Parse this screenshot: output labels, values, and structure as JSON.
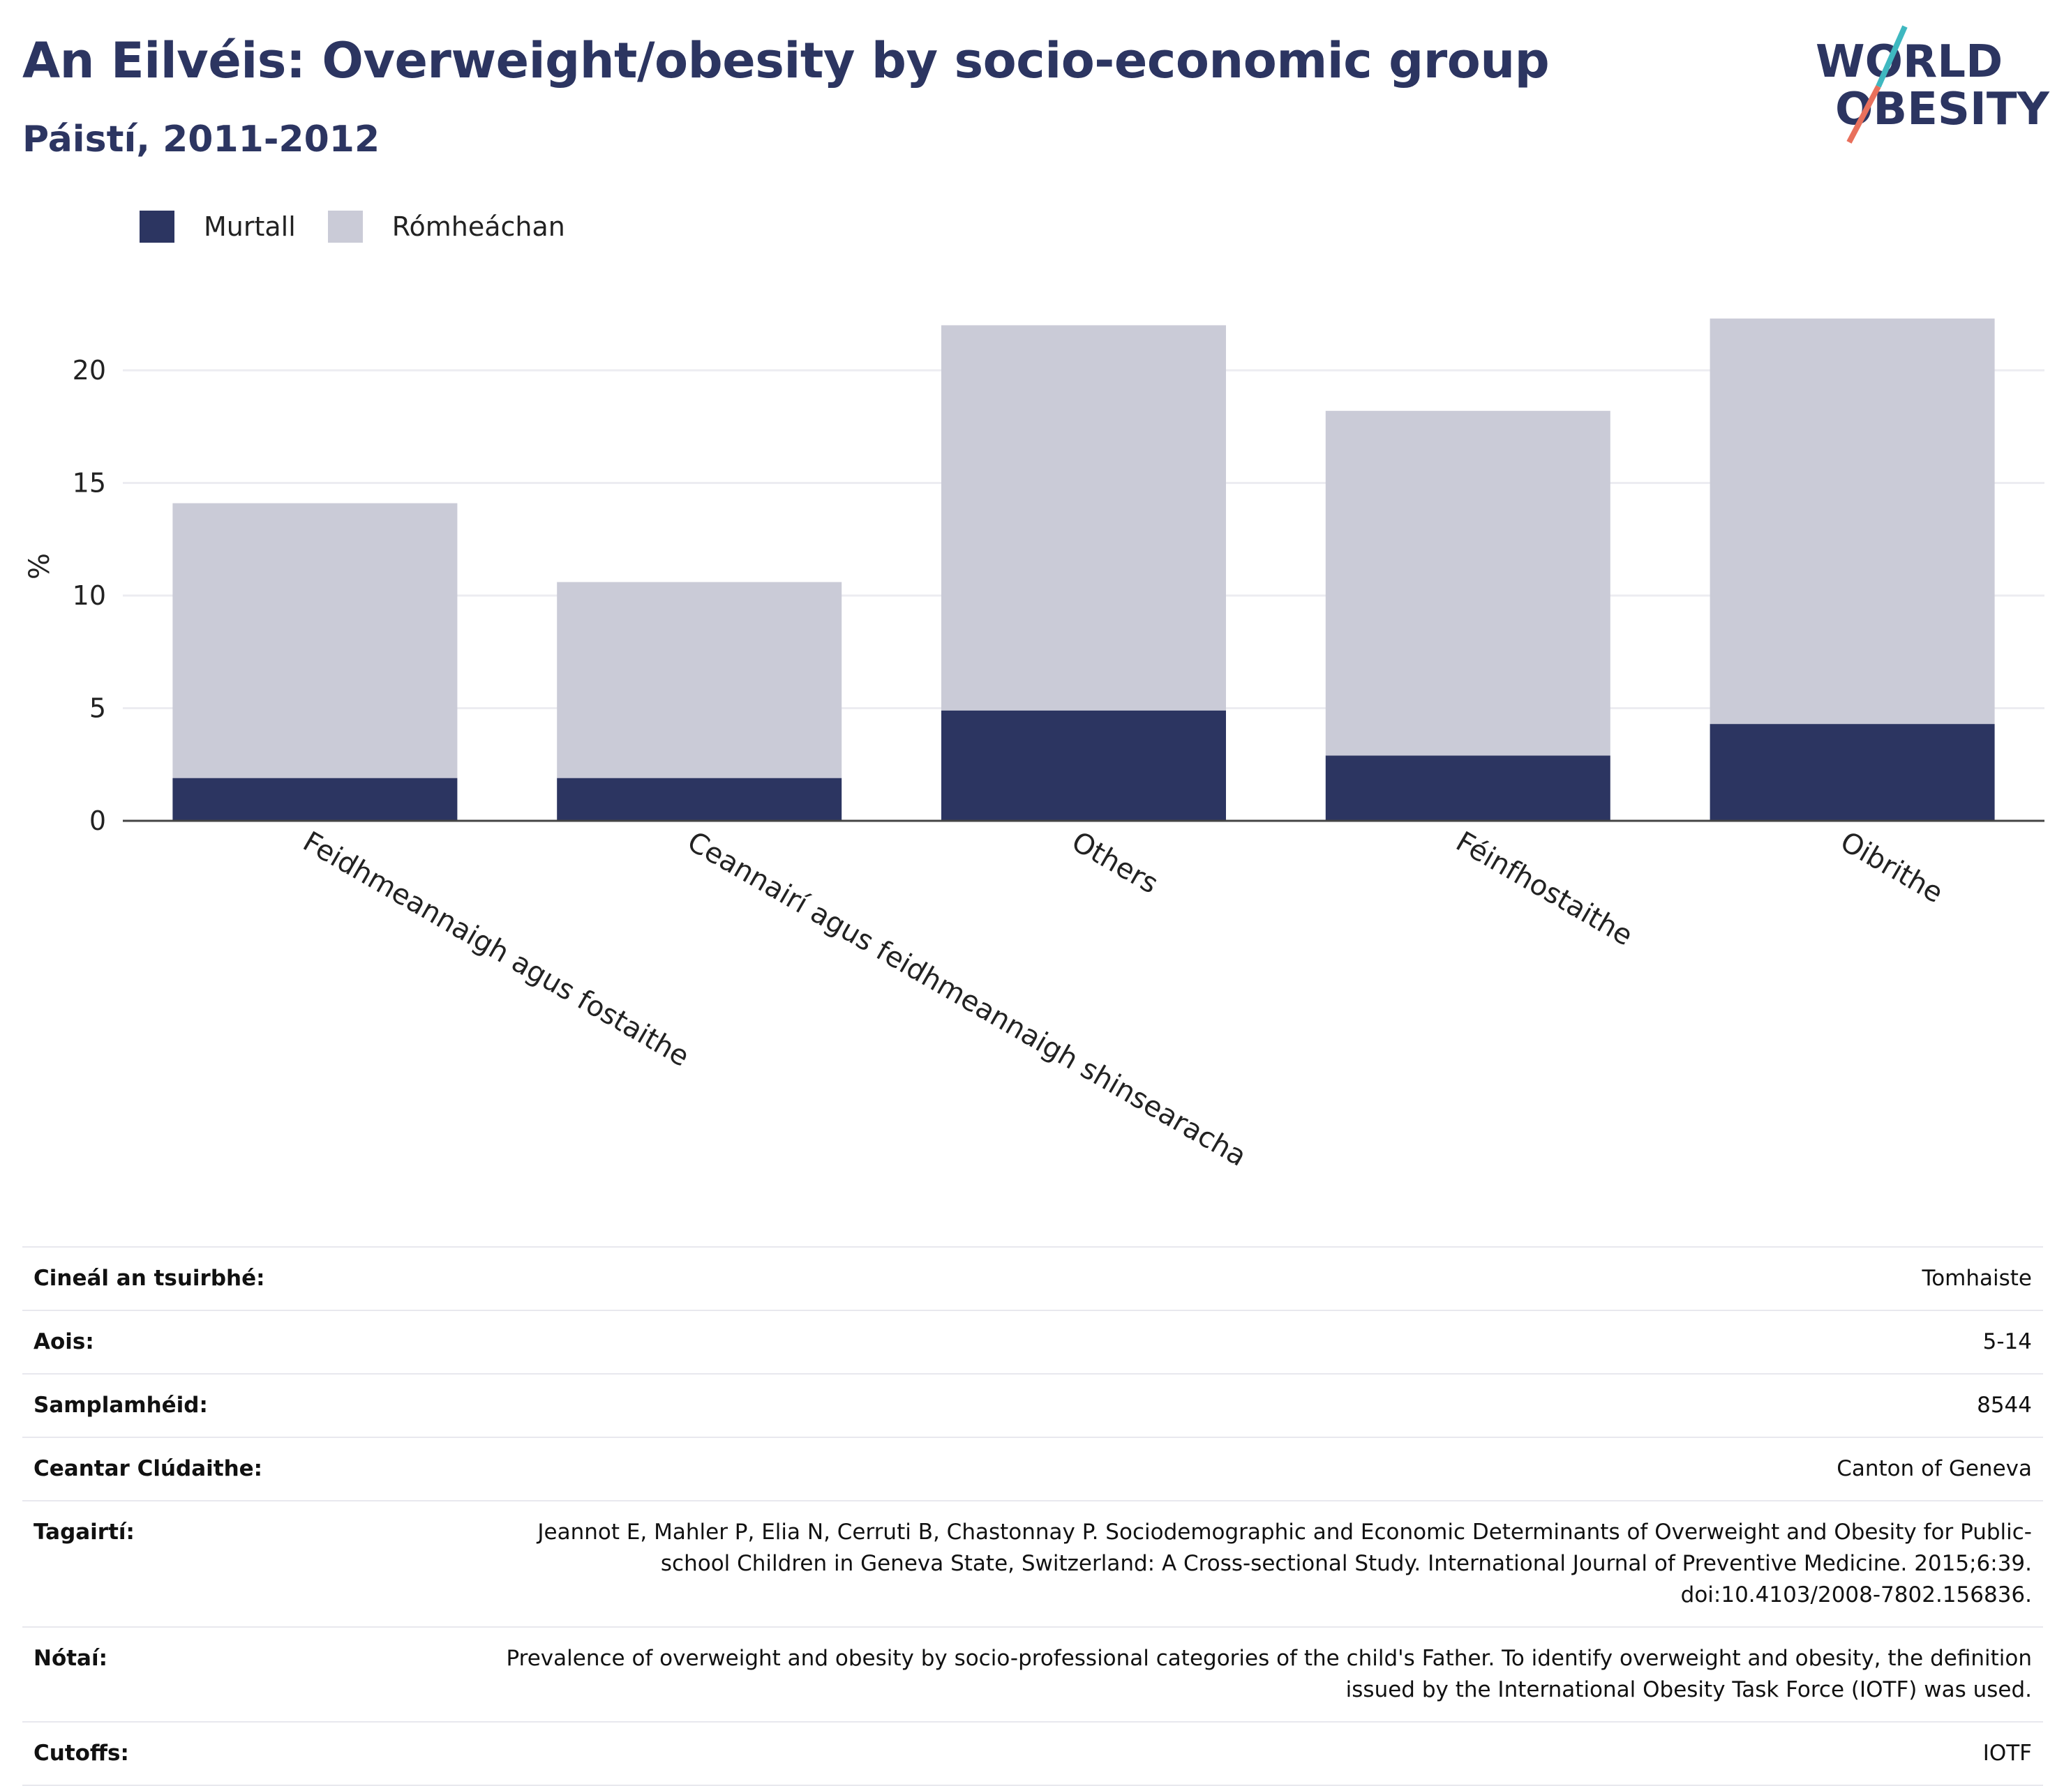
{
  "title": "An Eilvéis: Overweight/obesity by socio-economic group",
  "subtitle": "Páistí, 2011-2012",
  "logo": {
    "line1": "WORLD",
    "line2": "OBESITY",
    "accent_teal": "#3fb8c0",
    "accent_coral": "#e8705c"
  },
  "legend": [
    {
      "label": "Murtall",
      "color": "#2c3561"
    },
    {
      "label": "Rómheáchan",
      "color": "#cacbd7"
    }
  ],
  "chart_data": {
    "type": "bar",
    "stacked": true,
    "ylabel": "%",
    "ylim": [
      0,
      23
    ],
    "yticks": [
      0,
      5,
      10,
      15,
      20
    ],
    "grid": true,
    "legend_position": "top-left",
    "categories": [
      "Feidhmeannaigh agus fostaithe",
      "Ceannairí agus feidhmeannaigh shinsearacha",
      "Others",
      "Féinfhostaithe",
      "Oibrithe"
    ],
    "series": [
      {
        "name": "Murtall",
        "color": "#2c3561",
        "values": [
          1.9,
          1.9,
          4.9,
          2.9,
          4.3
        ]
      },
      {
        "name": "Rómheáchan",
        "color": "#cacbd7",
        "values": [
          12.2,
          8.7,
          17.1,
          15.3,
          18.0
        ]
      }
    ]
  },
  "meta": [
    {
      "label": "Cineál an tsuirbhé:",
      "value": "Tomhaiste"
    },
    {
      "label": "Aois:",
      "value": "5-14"
    },
    {
      "label": "Samplamhéid:",
      "value": "8544"
    },
    {
      "label": "Ceantar Clúdaithe:",
      "value": "Canton of Geneva"
    },
    {
      "label": "Tagairtí:",
      "value": "Jeannot E, Mahler P, Elia N, Cerruti B, Chastonnay P. Sociodemographic and Economic Determinants of Overweight and Obesity for Public-school Children in Geneva State, Switzerland: A Cross-sectional Study. International Journal of Preventive Medicine. 2015;6:39. doi:10.4103/2008-7802.156836."
    },
    {
      "label": "Nótaí:",
      "value": "Prevalence of overweight and obesity by socio-professional categories of the child's Father. To identify overweight and obesity, the definition issued by the International Obesity Task Force (IOTF) was used."
    },
    {
      "label": "Cutoffs:",
      "value": "IOTF"
    }
  ]
}
